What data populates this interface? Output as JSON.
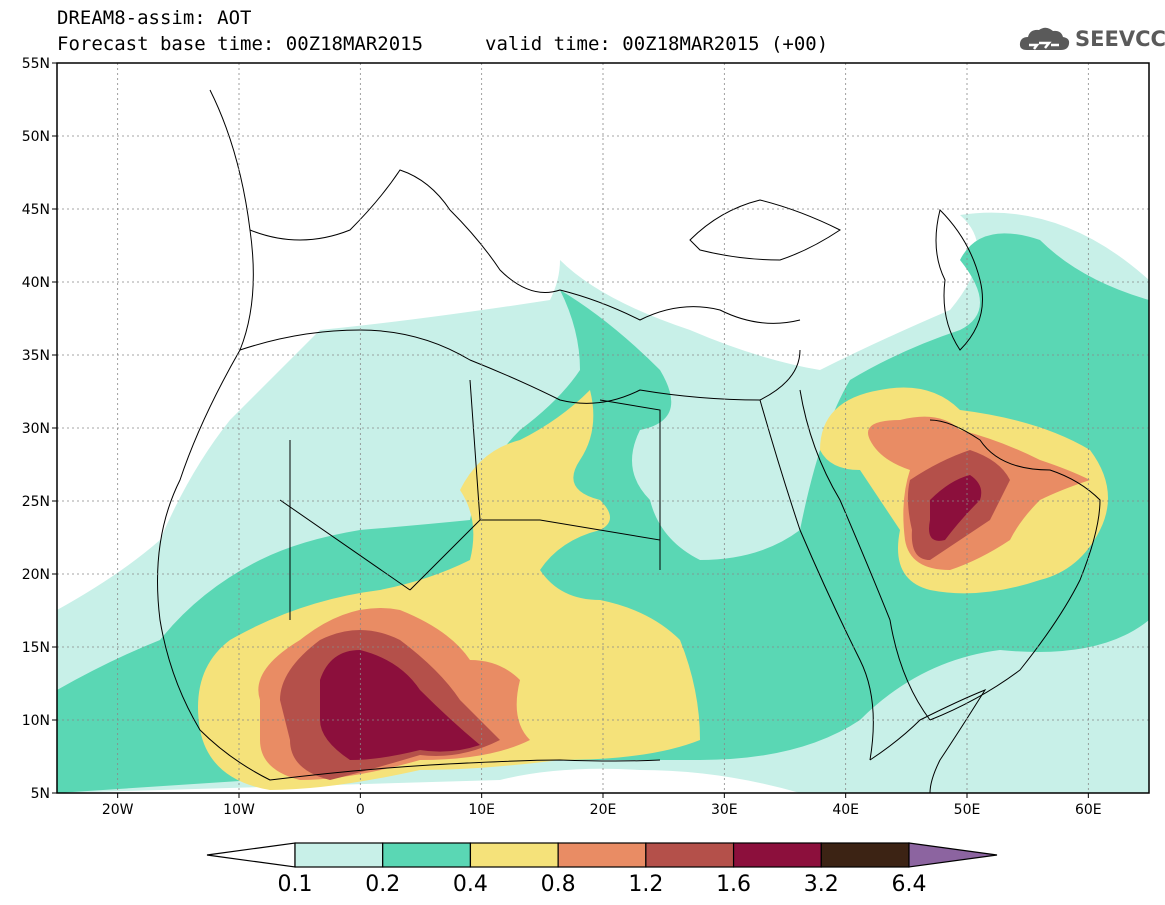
{
  "header": {
    "line1": "DREAM8-assim: AOT",
    "line2": "Forecast base time: 00Z18MAR2015",
    "valid": "valid time: 00Z18MAR2015 (+00)"
  },
  "logo": {
    "text": "SEEVCCC",
    "icon": "cloud-logo-icon"
  },
  "axes": {
    "lat_labels": [
      "55N",
      "50N",
      "45N",
      "40N",
      "35N",
      "30N",
      "25N",
      "20N",
      "15N",
      "10N",
      "5N"
    ],
    "lon_labels": [
      "20W",
      "10W",
      "0",
      "10E",
      "20E",
      "30E",
      "40E",
      "50E",
      "60E"
    ]
  },
  "colorbar": {
    "labels": [
      "0.1",
      "0.2",
      "0.4",
      "0.8",
      "1.2",
      "1.6",
      "3.2",
      "6.4"
    ],
    "colors": [
      "#ffffff",
      "#c8f0e8",
      "#5ad7b4",
      "#f5e27a",
      "#e98c64",
      "#b4504a",
      "#8c0f3c",
      "#3c2314",
      "#8c64a0"
    ]
  },
  "map": {
    "lon_range": [
      -25,
      65
    ],
    "lat_range": [
      5,
      55
    ],
    "grid_lons": [
      -20,
      -10,
      0,
      10,
      20,
      30,
      40,
      50,
      60
    ],
    "grid_lats": [
      10,
      15,
      20,
      25,
      30,
      35,
      40,
      45,
      50
    ]
  }
}
